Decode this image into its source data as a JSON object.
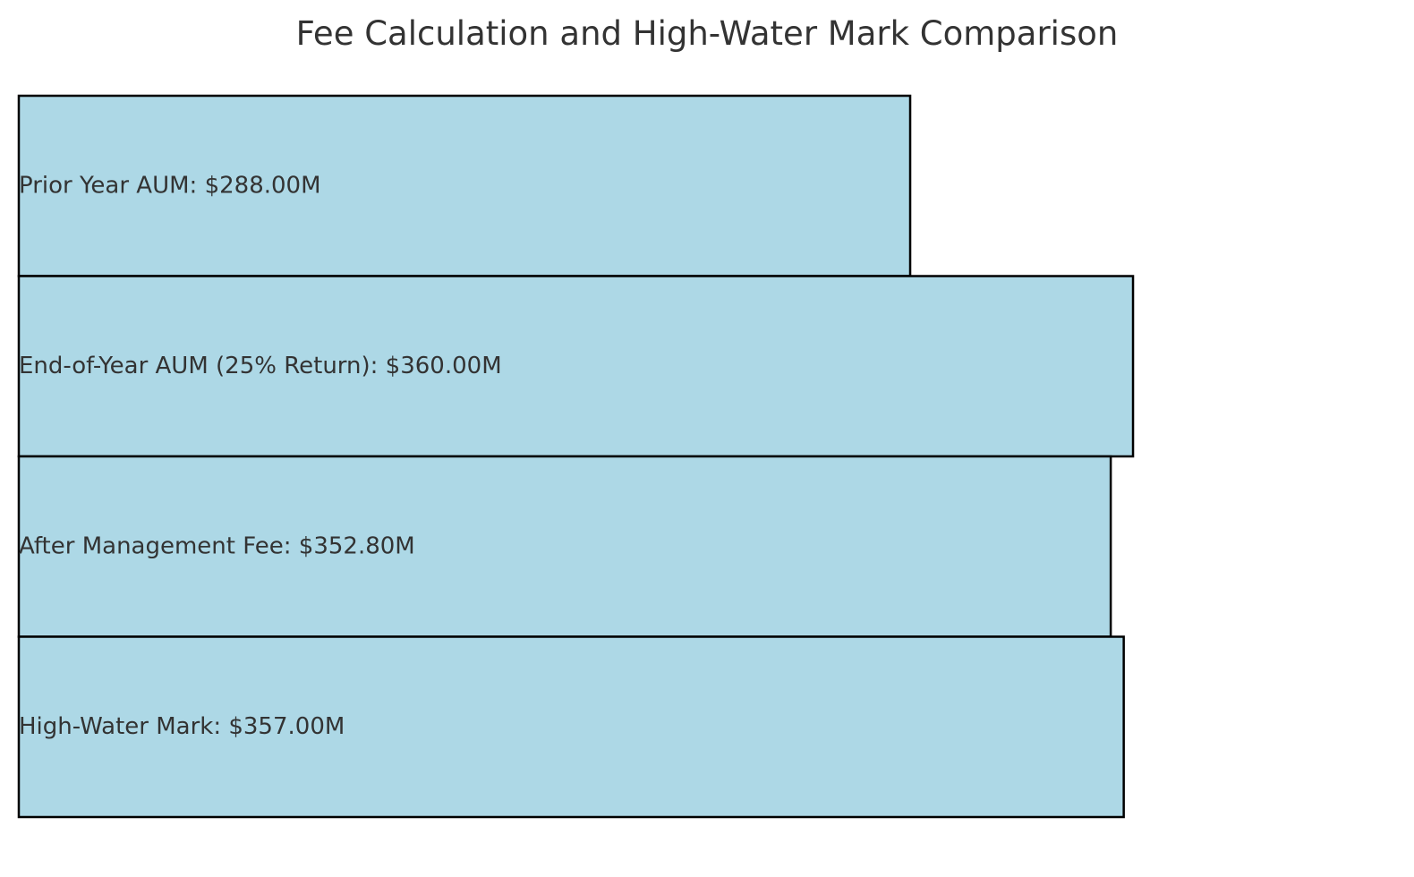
{
  "chart_data": {
    "type": "bar",
    "orientation": "horizontal",
    "title": "Fee Calculation and High-Water Mark Comparison",
    "xlabel": "",
    "ylabel": "",
    "unit": "$M",
    "categories": [
      "Prior Year AUM",
      "End-of-Year AUM (25% Return)",
      "After Management Fee",
      "High-Water Mark"
    ],
    "values": [
      288.0,
      360.0,
      352.8,
      357.0
    ],
    "labels": [
      "Prior Year AUM: $288.00M",
      "End-of-Year AUM (25% Return): $360.00M",
      "After Management Fee: $352.80M",
      "High-Water Mark: $357.00M"
    ],
    "xlim": [
      0,
      445
    ],
    "grid": false,
    "legend": "none",
    "bar_color": "#add8e6",
    "edge_color": "#000000",
    "text_color": "#333333"
  }
}
